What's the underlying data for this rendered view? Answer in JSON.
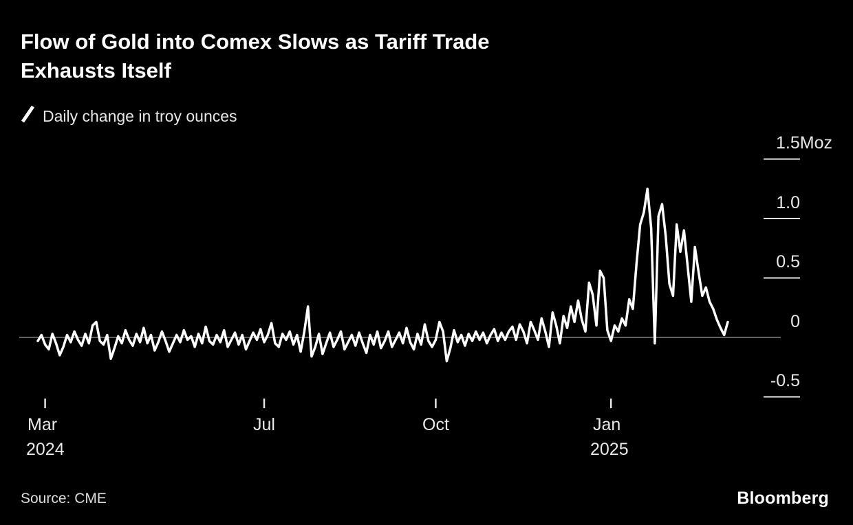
{
  "header": {
    "title_line1": "Flow of Gold into Comex Slows as Tariff Trade",
    "title_line2": "Exhausts Itself"
  },
  "legend": {
    "label": "Daily change in troy ounces"
  },
  "footer": {
    "source": "Source: CME",
    "brand": "Bloomberg"
  },
  "colors": {
    "background": "#000000",
    "line": "#ffffff",
    "zero_line": "#808080",
    "tick": "#e6e6e6",
    "text": "#e8e8e8"
  },
  "chart_data": {
    "type": "line",
    "title": "Flow of Gold into Comex Slows as Tariff Trade Exhausts Itself",
    "legend": "Daily change in troy ounces",
    "unit": "Moz",
    "ylabel": "Daily change in troy ounces (Moz)",
    "ylim": [
      -0.75,
      1.75
    ],
    "grid": "right-axis ticks only, zero baseline across plot",
    "legend_position": "top-left",
    "y_ticks": [
      {
        "label": "1.5Moz",
        "value": 1.5
      },
      {
        "label": "1.0",
        "value": 1.0
      },
      {
        "label": "0.5",
        "value": 0.5
      },
      {
        "label": "0",
        "value": 0
      },
      {
        "label": "-0.5",
        "value": -0.5
      }
    ],
    "x_ticks": [
      {
        "label": "Mar",
        "sublabel": "2024",
        "index": 2
      },
      {
        "label": "Jul",
        "index": 62
      },
      {
        "label": "Oct",
        "index": 109
      },
      {
        "label": "Jan",
        "sublabel": "2025",
        "index": 157
      }
    ],
    "values": [
      -0.03,
      0.02,
      -0.06,
      -0.1,
      0.03,
      -0.05,
      -0.15,
      -0.08,
      0.02,
      -0.04,
      0.05,
      -0.02,
      -0.07,
      0.03,
      -0.05,
      0.1,
      0.13,
      -0.03,
      -0.06,
      0.02,
      -0.18,
      -0.09,
      0.01,
      -0.05,
      0.06,
      -0.02,
      -0.07,
      0.03,
      -0.04,
      0.08,
      -0.05,
      0.02,
      -0.11,
      -0.04,
      0.05,
      -0.03,
      -0.12,
      -0.05,
      0.02,
      -0.04,
      0.06,
      -0.02,
      0.01,
      -0.08,
      0.03,
      -0.05,
      0.09,
      -0.03,
      -0.06,
      0.02,
      -0.04,
      0.06,
      -0.08,
      -0.02,
      0.04,
      -0.06,
      0.02,
      -0.1,
      -0.03,
      0.04,
      -0.02,
      0.07,
      -0.04,
      0.02,
      0.12,
      -0.05,
      -0.08,
      0.03,
      -0.02,
      0.05,
      -0.06,
      0.02,
      -0.12,
      0.05,
      0.26,
      -0.16,
      -0.08,
      0.03,
      -0.14,
      -0.05,
      0.04,
      -0.08,
      -0.02,
      0.05,
      -0.1,
      -0.04,
      0.02,
      -0.07,
      0.04,
      -0.05,
      -0.13,
      0.02,
      -0.06,
      0.05,
      -0.09,
      -0.03,
      0.05,
      -0.08,
      -0.02,
      0.04,
      -0.05,
      0.08,
      -0.04,
      -0.1,
      0.03,
      -0.06,
      0.11,
      -0.03,
      -0.08,
      -0.02,
      0.13,
      0.05,
      -0.2,
      -0.09,
      0.06,
      -0.04,
      0.02,
      -0.07,
      0.03,
      -0.03,
      0.05,
      -0.02,
      0.04,
      -0.05,
      0.02,
      0.07,
      -0.03,
      0.04,
      -0.02,
      0.05,
      0.09,
      -0.02,
      0.11,
      0.05,
      -0.05,
      0.13,
      0.06,
      -0.02,
      0.16,
      0.05,
      -0.08,
      0.21,
      0.1,
      -0.05,
      0.18,
      0.08,
      0.26,
      0.13,
      0.31,
      0.15,
      0.05,
      0.46,
      0.36,
      0.1,
      0.56,
      0.5,
      0.06,
      -0.03,
      0.1,
      0.05,
      0.16,
      0.1,
      0.32,
      0.24,
      0.62,
      0.95,
      1.05,
      1.25,
      0.92,
      -0.05,
      1.02,
      1.12,
      0.85,
      0.45,
      0.35,
      0.95,
      0.72,
      0.9,
      0.6,
      0.3,
      0.76,
      0.55,
      0.35,
      0.42,
      0.3,
      0.24,
      0.15,
      0.08,
      0.02,
      0.13
    ]
  }
}
